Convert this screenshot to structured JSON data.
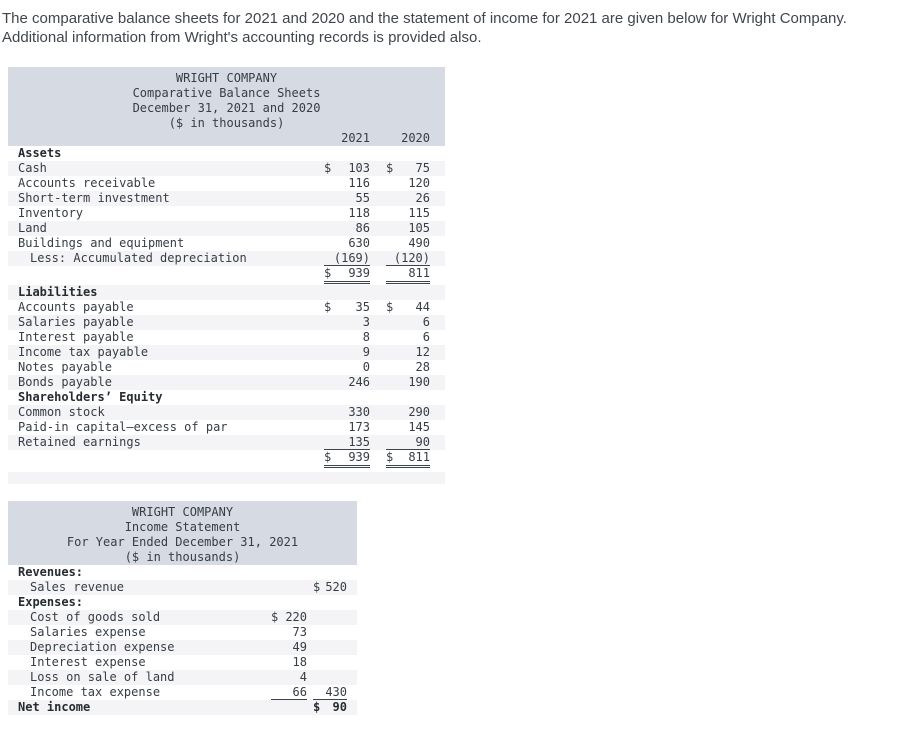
{
  "intro": {
    "line1": "The comparative balance sheets for 2021 and 2020 and the statement of income for 2021 are given below for Wright Company.",
    "line2": "Additional information from Wright's accounting records is provided also."
  },
  "colors": {
    "header_bg": "#d6dae3",
    "row_stripe": "#f4f4f6",
    "text": "#363d45"
  },
  "balance_sheet": {
    "title_lines": [
      "WRIGHT COMPANY",
      "Comparative Balance Sheets",
      "December 31, 2021 and 2020",
      "($ in thousands)"
    ],
    "col_headers": [
      "2021",
      "2020"
    ],
    "rows": [
      {
        "label": "Assets",
        "bold": true
      },
      {
        "label": "Cash",
        "d1": "$",
        "v1": "103",
        "d2": "$",
        "v2": "75",
        "shaded": true
      },
      {
        "label": "Accounts receivable",
        "v1": "116",
        "v2": "120"
      },
      {
        "label": "Short-term investment",
        "v1": "55",
        "v2": "26",
        "shaded": true
      },
      {
        "label": "Inventory",
        "v1": "118",
        "v2": "115"
      },
      {
        "label": "Land",
        "v1": "86",
        "v2": "105",
        "shaded": true
      },
      {
        "label": "Buildings and equipment",
        "v1": "630",
        "v2": "490"
      },
      {
        "label": "Less: Accumulated depreciation",
        "indent": 1,
        "v1": "(169)",
        "v2": "(120)",
        "u1": true,
        "u2": true,
        "shaded": true
      },
      {
        "label": "",
        "d1": "$",
        "v1": "939",
        "v2": "811",
        "total": true
      },
      {
        "label": "Liabilities",
        "bold": true,
        "shaded": true
      },
      {
        "label": "Accounts payable",
        "d1": "$",
        "v1": "35",
        "d2": "$",
        "v2": "44"
      },
      {
        "label": "Salaries payable",
        "v1": "3",
        "v2": "6",
        "shaded": true
      },
      {
        "label": "Interest payable",
        "v1": "8",
        "v2": "6"
      },
      {
        "label": "Income tax payable",
        "v1": "9",
        "v2": "12",
        "shaded": true
      },
      {
        "label": "Notes payable",
        "v1": "0",
        "v2": "28"
      },
      {
        "label": "Bonds payable",
        "v1": "246",
        "v2": "190",
        "shaded": true
      },
      {
        "label": "Shareholders’ Equity",
        "bold": true
      },
      {
        "label": "Common stock",
        "v1": "330",
        "v2": "290",
        "shaded": true
      },
      {
        "label": "Paid-in capital—excess of par",
        "v1": "173",
        "v2": "145"
      },
      {
        "label": "Retained earnings",
        "v1": "135",
        "v2": "90",
        "u1": true,
        "u2": true,
        "shaded": true
      },
      {
        "label": "",
        "d1": "$",
        "v1": "939",
        "d2": "$",
        "v2": "811",
        "total": true
      },
      {
        "label": "",
        "spacer": true,
        "shaded": true
      }
    ]
  },
  "income_statement": {
    "title_lines": [
      "WRIGHT COMPANY",
      "Income Statement",
      "For Year Ended December 31, 2021",
      "($ in thousands)"
    ],
    "rows": [
      {
        "label": "Revenues:",
        "bold": true
      },
      {
        "label": "Sales revenue",
        "indent": 1,
        "d2": "$",
        "v2": "520",
        "shaded": true
      },
      {
        "label": "Expenses:",
        "bold": true
      },
      {
        "label": "Cost of goods sold",
        "indent": 1,
        "d1": "$",
        "v1": "220",
        "shaded": true
      },
      {
        "label": "Salaries expense",
        "indent": 1,
        "v1": "73"
      },
      {
        "label": "Depreciation expense",
        "indent": 1,
        "v1": "49",
        "shaded": true
      },
      {
        "label": "Interest expense",
        "indent": 1,
        "v1": "18"
      },
      {
        "label": "Loss on sale of land",
        "indent": 1,
        "v1": "4",
        "shaded": true
      },
      {
        "label": "Income tax expense",
        "indent": 1,
        "v1": "66",
        "v2": "430",
        "u1": true,
        "u2": true
      },
      {
        "label": "Net income",
        "bold": true,
        "d2": "$",
        "v2": "90",
        "shaded": true
      }
    ]
  }
}
